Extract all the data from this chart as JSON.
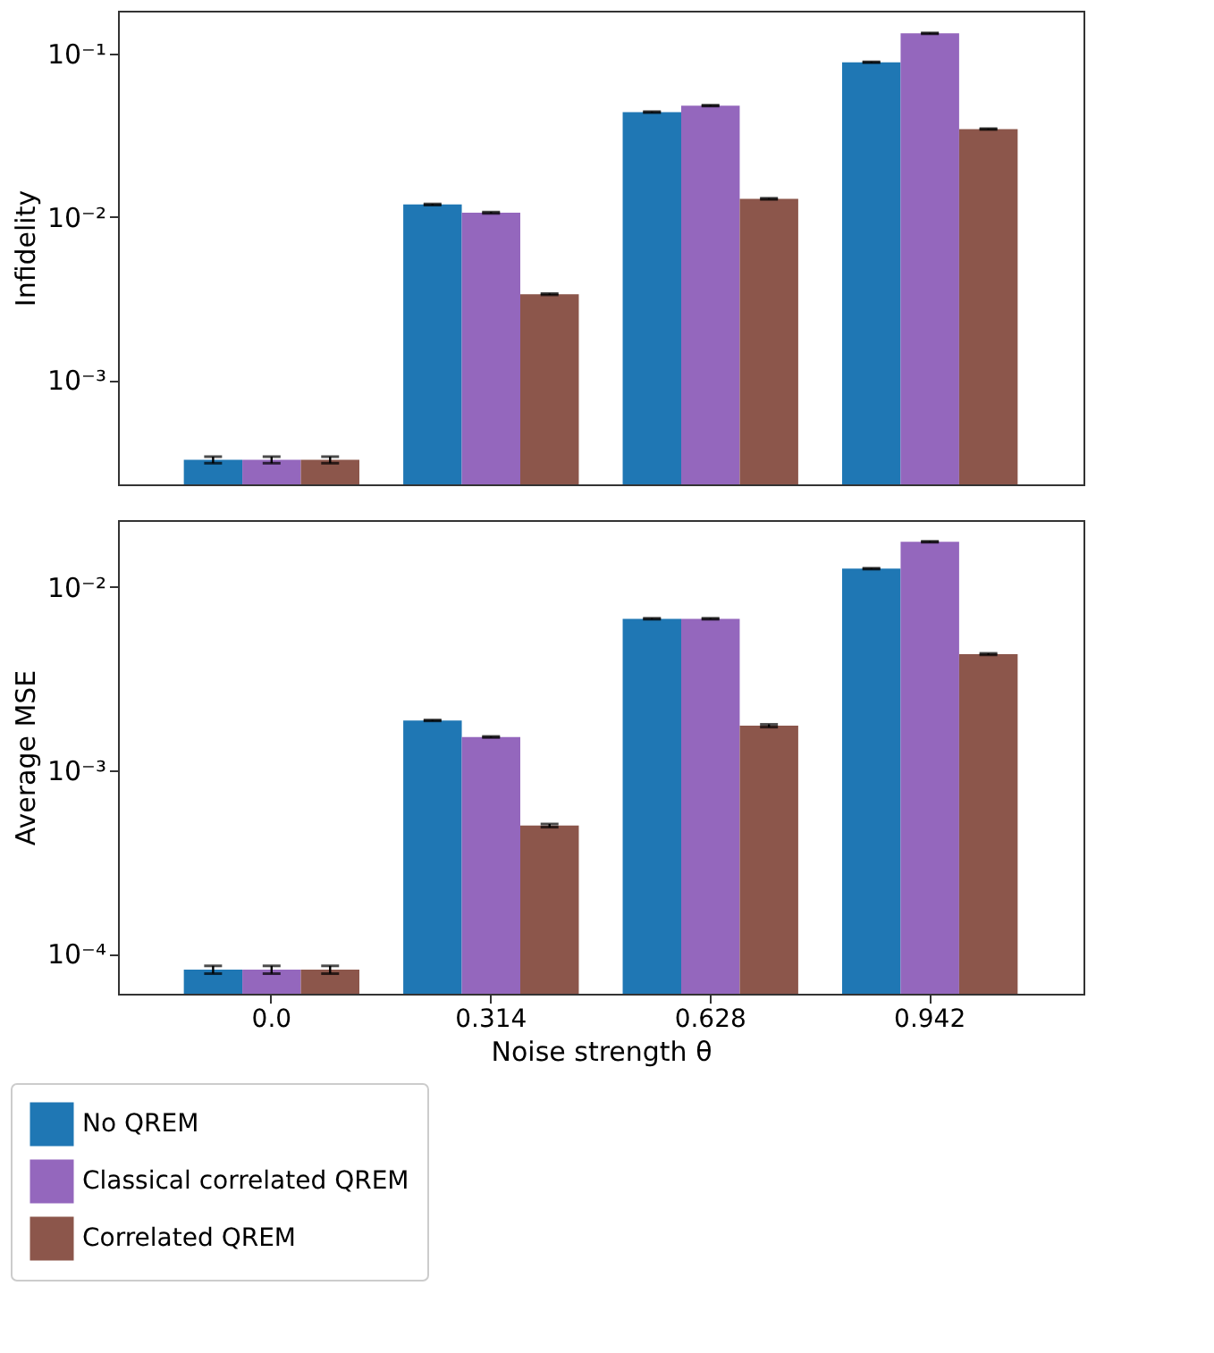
{
  "chart_data": [
    {
      "type": "bar",
      "ylabel": "Infidelity",
      "categories": [
        "0.0",
        "0.314",
        "0.628",
        "0.942"
      ],
      "log": true,
      "ylim": [
        0.00023,
        0.183
      ],
      "yticks": [
        {
          "value": 0.001,
          "label": "10⁻³"
        },
        {
          "value": 0.01,
          "label": "10⁻²"
        },
        {
          "value": 0.1,
          "label": "10⁻¹"
        }
      ],
      "tick_labels": "y",
      "grid": false,
      "legend": false,
      "series": [
        {
          "color": "#1f77b4",
          "values": [
            0.000325,
            0.0119,
            0.0438,
            0.0885
          ],
          "errors": [
            1.5e-05,
            0.0001,
            0.0003,
            0.0005
          ]
        },
        {
          "color": "#9467bd",
          "values": [
            0.000325,
            0.0106,
            0.048,
            0.133
          ],
          "errors": [
            1.5e-05,
            0.0001,
            0.0003,
            0.0008
          ]
        },
        {
          "color": "#8c564b",
          "values": [
            0.000325,
            0.00336,
            0.0129,
            0.0345
          ],
          "errors": [
            1.5e-05,
            3e-05,
            0.0001,
            0.0002
          ]
        }
      ]
    },
    {
      "type": "bar",
      "ylabel": "Average MSE",
      "xlabel": "Noise strength θ",
      "categories": [
        "0.0",
        "0.314",
        "0.628",
        "0.942"
      ],
      "log": true,
      "ylim": [
        6.06e-05,
        0.0231
      ],
      "yticks": [
        {
          "value": 0.0001,
          "label": "10⁻⁴"
        },
        {
          "value": 0.001,
          "label": "10⁻³"
        },
        {
          "value": 0.01,
          "label": "10⁻²"
        }
      ],
      "grid": false,
      "legend": "bottom",
      "series": [
        {
          "name": "No QREM",
          "color": "#1f77b4",
          "values": [
            8.2e-05,
            0.00187,
            0.0067,
            0.01256
          ],
          "errors": [
            4e-06,
            1e-05,
            4e-05,
            7e-05
          ]
        },
        {
          "name": "Classical correlated QREM",
          "color": "#9467bd",
          "values": [
            8.2e-05,
            0.00152,
            0.0067,
            0.0176
          ],
          "errors": [
            4e-06,
            1e-05,
            4e-05,
            0.0001
          ]
        },
        {
          "name": "Correlated QREM",
          "color": "#8c564b",
          "values": [
            8.2e-05,
            0.0005,
            0.00175,
            0.0043
          ],
          "errors": [
            4e-06,
            1e-05,
            3e-05,
            4e-05
          ]
        }
      ]
    }
  ]
}
